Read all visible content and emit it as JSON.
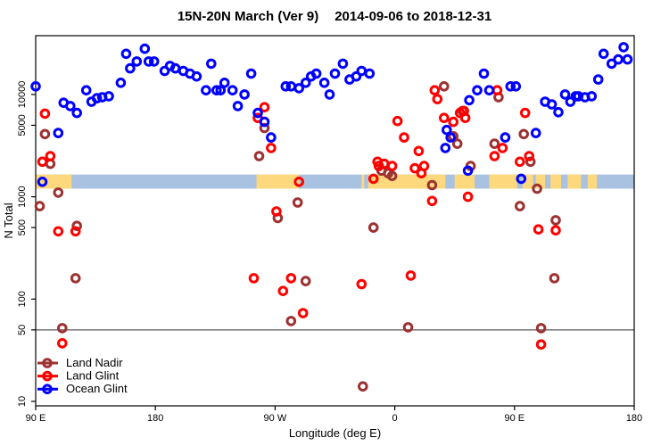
{
  "title": {
    "main": "15N-20N March (Ver 9)",
    "dates": "2014-09-06 to 2018-12-31"
  },
  "chart_data": {
    "type": "scatter",
    "xlabel": "Longitude (deg E)",
    "ylabel": "N Total",
    "x_axis": {
      "range": [
        90,
        540
      ],
      "ticks": [
        {
          "value": 90,
          "label": "90 E"
        },
        {
          "value": 180,
          "label": "180"
        },
        {
          "value": 270,
          "label": "90 W"
        },
        {
          "value": 360,
          "label": "0"
        },
        {
          "value": 450,
          "label": "90 E"
        },
        {
          "value": 540,
          "label": "180"
        }
      ]
    },
    "y_axis": {
      "scale": "log",
      "range": [
        9,
        35000
      ],
      "ticks": [
        10000,
        5000,
        1000,
        500,
        100,
        50,
        10
      ]
    },
    "reference_line": {
      "value": 50,
      "color": "#7f7f7f"
    },
    "map_band": {
      "n_range": [
        1200,
        1650
      ],
      "ocean_color": "#a9c2e1",
      "land_color": "#fdd87c",
      "land_segments": [
        [
          90,
          117
        ],
        [
          256,
          288
        ],
        [
          335,
          337
        ],
        [
          340,
          398
        ],
        [
          405,
          420
        ],
        [
          431,
          452
        ],
        [
          456,
          464
        ],
        [
          466,
          473
        ],
        [
          477,
          485
        ],
        [
          490,
          500
        ],
        [
          505,
          512
        ]
      ]
    },
    "legend": {
      "position": "bottom-left",
      "items": [
        {
          "label": "Land Nadir",
          "color": "#9c3232"
        },
        {
          "label": "Land Glint",
          "color": "#ff0000"
        },
        {
          "label": "Ocean Glint",
          "color": "#0000ff"
        }
      ]
    },
    "series": [
      {
        "name": "Land Nadir",
        "color": "#9c3232",
        "points": [
          [
            97,
            4100
          ],
          [
            101,
            2100
          ],
          [
            107,
            1100
          ],
          [
            93,
            810
          ],
          [
            121,
            520
          ],
          [
            120,
            160
          ],
          [
            110,
            52
          ],
          [
            262,
            4700
          ],
          [
            258,
            2500
          ],
          [
            287,
            880
          ],
          [
            272,
            620
          ],
          [
            293,
            150
          ],
          [
            282,
            61
          ],
          [
            397,
            12000
          ],
          [
            411,
            6900
          ],
          [
            404,
            3900
          ],
          [
            407,
            3300
          ],
          [
            355,
            1700
          ],
          [
            358,
            1600
          ],
          [
            350,
            1800
          ],
          [
            388,
            1300
          ],
          [
            417,
            2000
          ],
          [
            435,
            3300
          ],
          [
            344,
            500
          ],
          [
            370,
            53
          ],
          [
            336,
            14
          ],
          [
            438,
            9400
          ],
          [
            457,
            4100
          ],
          [
            462,
            2200
          ],
          [
            467,
            1200
          ],
          [
            454,
            810
          ],
          [
            481,
            590
          ],
          [
            480,
            160
          ],
          [
            470,
            52
          ]
        ]
      },
      {
        "name": "Land Glint",
        "color": "#ff0000",
        "points": [
          [
            97,
            6500
          ],
          [
            101,
            2500
          ],
          [
            95,
            2200
          ],
          [
            107,
            460
          ],
          [
            120,
            460
          ],
          [
            110,
            37
          ],
          [
            262,
            7500
          ],
          [
            257,
            5900
          ],
          [
            267,
            3000
          ],
          [
            288,
            1400
          ],
          [
            271,
            720
          ],
          [
            254,
            160
          ],
          [
            282,
            160
          ],
          [
            276,
            120
          ],
          [
            291,
            73
          ],
          [
            362,
            5500
          ],
          [
            367,
            3800
          ],
          [
            378,
            2800
          ],
          [
            347,
            2200
          ],
          [
            352,
            2100
          ],
          [
            348,
            2000
          ],
          [
            358,
            2000
          ],
          [
            375,
            1900
          ],
          [
            382,
            2000
          ],
          [
            380,
            1700
          ],
          [
            344,
            1500
          ],
          [
            392,
            9000
          ],
          [
            390,
            11000
          ],
          [
            397,
            5900
          ],
          [
            404,
            5400
          ],
          [
            409,
            6600
          ],
          [
            412,
            6900
          ],
          [
            413,
            5900
          ],
          [
            388,
            910
          ],
          [
            415,
            1000
          ],
          [
            372,
            170
          ],
          [
            335,
            140
          ],
          [
            435,
            2500
          ],
          [
            437,
            11000
          ],
          [
            458,
            6600
          ],
          [
            441,
            3000
          ],
          [
            454,
            2200
          ],
          [
            461,
            2500
          ],
          [
            468,
            480
          ],
          [
            481,
            470
          ],
          [
            470,
            36
          ]
        ]
      },
      {
        "name": "Ocean Glint",
        "color": "#0000ff",
        "points": [
          [
            90,
            12000
          ],
          [
            111,
            8300
          ],
          [
            116,
            7700
          ],
          [
            121,
            6600
          ],
          [
            128,
            11000
          ],
          [
            132,
            8500
          ],
          [
            136,
            9200
          ],
          [
            140,
            9400
          ],
          [
            145,
            9600
          ],
          [
            154,
            13000
          ],
          [
            158,
            25000
          ],
          [
            161,
            18000
          ],
          [
            166,
            21000
          ],
          [
            172,
            28000
          ],
          [
            175,
            21000
          ],
          [
            179,
            21000
          ],
          [
            187,
            17000
          ],
          [
            191,
            19000
          ],
          [
            195,
            18000
          ],
          [
            201,
            17000
          ],
          [
            107,
            4200
          ],
          [
            95,
            1400
          ],
          [
            206,
            16000
          ],
          [
            211,
            15000
          ],
          [
            222,
            20000
          ],
          [
            218,
            11000
          ],
          [
            226,
            11000
          ],
          [
            232,
            13000
          ],
          [
            229,
            11000
          ],
          [
            238,
            11000
          ],
          [
            242,
            7700
          ],
          [
            247,
            10000
          ],
          [
            252,
            16000
          ],
          [
            257,
            6600
          ],
          [
            262,
            5400
          ],
          [
            267,
            3800
          ],
          [
            278,
            12000
          ],
          [
            282,
            12000
          ],
          [
            288,
            11500
          ],
          [
            293,
            13000
          ],
          [
            297,
            15000
          ],
          [
            301,
            16000
          ],
          [
            307,
            13000
          ],
          [
            311,
            10000
          ],
          [
            315,
            16000
          ],
          [
            321,
            20000
          ],
          [
            326,
            14000
          ],
          [
            331,
            15000
          ],
          [
            335,
            17000
          ],
          [
            341,
            16000
          ],
          [
            399,
            4500
          ],
          [
            402,
            3800
          ],
          [
            398,
            3000
          ],
          [
            416,
            8800
          ],
          [
            422,
            11000
          ],
          [
            427,
            16000
          ],
          [
            431,
            11000
          ],
          [
            415,
            1800
          ],
          [
            447,
            12000
          ],
          [
            451,
            12000
          ],
          [
            473,
            8500
          ],
          [
            478,
            8000
          ],
          [
            483,
            6700
          ],
          [
            488,
            10000
          ],
          [
            492,
            8500
          ],
          [
            496,
            9600
          ],
          [
            498,
            9600
          ],
          [
            503,
            9400
          ],
          [
            508,
            9600
          ],
          [
            513,
            14000
          ],
          [
            517,
            25000
          ],
          [
            523,
            20000
          ],
          [
            528,
            22000
          ],
          [
            532,
            29000
          ],
          [
            535,
            22000
          ],
          [
            443,
            3800
          ],
          [
            455,
            1500
          ],
          [
            466,
            4200
          ]
        ]
      }
    ]
  }
}
